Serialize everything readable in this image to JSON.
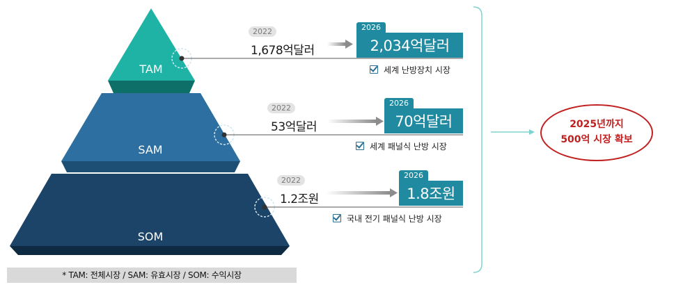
{
  "tiers": [
    {
      "label": "TAM",
      "base_year": "2022",
      "base_value": "1,678억달러",
      "target_year": "2026",
      "target_value": "2,034억달러",
      "scope": "세계 난방장치 시장",
      "color": "#1fb3a6"
    },
    {
      "label": "SAM",
      "base_year": "2022",
      "base_value": "53억달러",
      "target_year": "2026",
      "target_value": "70억달러",
      "scope": "세계 패널식 난방 시장",
      "color": "#2c6fa0"
    },
    {
      "label": "SOM",
      "base_year": "2022",
      "base_value": "1.2조원",
      "target_year": "2026",
      "target_value": "1.8조원",
      "scope": "국내 전기 패널식 난방 시장",
      "color": "#1b4468"
    }
  ],
  "goal": {
    "line1": "2025년까지",
    "line2": "500억 시장 확보",
    "color": "#c0201f"
  },
  "footnote": "* TAM: 전체시장  /  SAM: 유효시장  /  SOM: 수익시장",
  "colors": {
    "target_box": "#1f8aa0",
    "bracket": "#7fd3cf",
    "arrow": "#8c8c8c"
  }
}
